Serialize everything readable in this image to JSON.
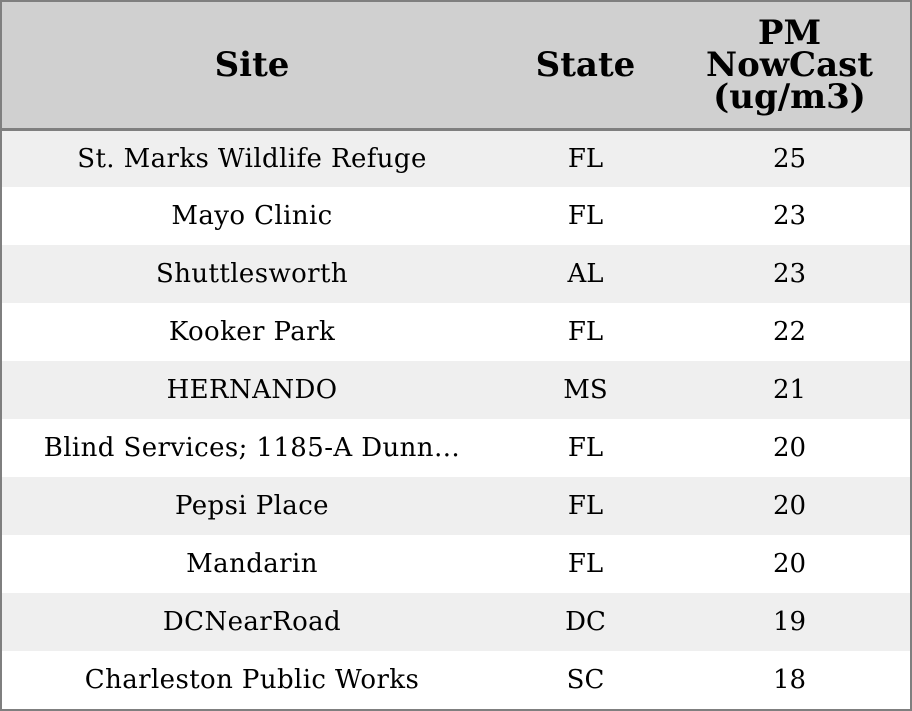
{
  "table": {
    "headers": {
      "site": "Site",
      "state": "State",
      "pm_line1": "PM",
      "pm_line2": "NowCast",
      "pm_line3": "(ug/m3)"
    },
    "rows": [
      {
        "site": "St. Marks Wildlife Refuge",
        "state": "FL",
        "pm": "25"
      },
      {
        "site": "Mayo Clinic",
        "state": "FL",
        "pm": "23"
      },
      {
        "site": "Shuttlesworth",
        "state": "AL",
        "pm": "23"
      },
      {
        "site": "Kooker Park",
        "state": "FL",
        "pm": "22"
      },
      {
        "site": "HERNANDO",
        "state": "MS",
        "pm": "21"
      },
      {
        "site": "Blind Services; 1185-A Dunn…",
        "state": "FL",
        "pm": "20"
      },
      {
        "site": "Pepsi Place",
        "state": "FL",
        "pm": "20"
      },
      {
        "site": "Mandarin",
        "state": "FL",
        "pm": "20"
      },
      {
        "site": "DCNearRoad",
        "state": "DC",
        "pm": "19"
      },
      {
        "site": "Charleston Public Works",
        "state": "SC",
        "pm": "18"
      }
    ]
  },
  "colors": {
    "header_bg": "#d0d0d0",
    "stripe_bg": "#efefef",
    "border": "#7f7f7f"
  }
}
